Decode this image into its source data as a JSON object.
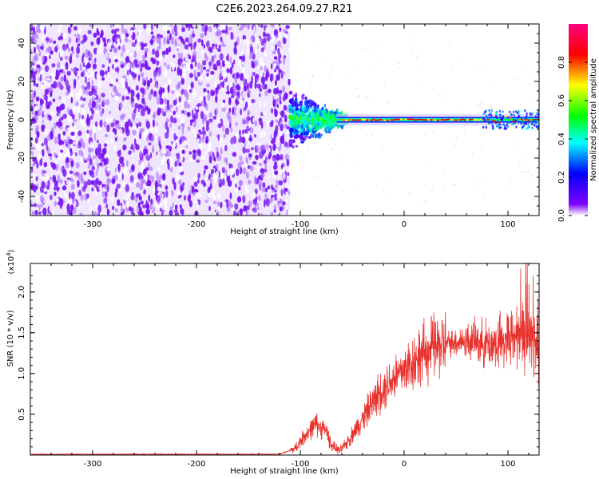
{
  "title": "C2E6.2023.264.09.27.R21",
  "chart_data": [
    {
      "type": "heatmap",
      "xlabel": "Height of straight line (km)",
      "ylabel": "Frequency (Hz)",
      "xlim": [
        -360,
        130
      ],
      "ylim": [
        -50,
        50
      ],
      "xticks": [
        -300,
        -200,
        -100,
        0,
        100
      ],
      "yticks": [
        -40,
        -20,
        0,
        20,
        40
      ],
      "noise_region": {
        "x": [
          -360,
          -110
        ],
        "y": [
          -50,
          50
        ]
      },
      "transition_region": {
        "x": [
          -110,
          -55
        ],
        "y": [
          -15,
          15
        ]
      },
      "signal_trace": {
        "x": [
          -110,
          130
        ],
        "frequency": 0
      },
      "colorbar": {
        "label": "Normalized spectral amplitude",
        "range": [
          0,
          1
        ],
        "ticks": [
          0.0,
          0.2,
          0.4,
          0.6,
          0.8
        ],
        "colormap": [
          "#ffffff",
          "#7f00ff",
          "#0000ff",
          "#00ffff",
          "#00ff00",
          "#ffff00",
          "#ff0000",
          "#ff0080"
        ]
      }
    },
    {
      "type": "line",
      "xlabel": "Height of straight line (km)",
      "ylabel": "SNR (10 * v/v)",
      "y_multiplier": "(x10",
      "y_exponent": "4",
      "y_exponent_close": ")",
      "xlim": [
        -360,
        130
      ],
      "ylim": [
        0,
        2.35
      ],
      "xticks": [
        -300,
        -200,
        -100,
        0,
        100
      ],
      "yticks": [
        0.5,
        1.0,
        1.5,
        2.0
      ],
      "ytick_labels": [
        "0.5",
        "1.0",
        "1.5",
        "2.0"
      ],
      "color": "#e8322d",
      "series": [
        {
          "x": [
            -360,
            -300,
            -200,
            -120,
            -105,
            -95,
            -85,
            -75,
            -70,
            -62,
            -55,
            -45,
            -35,
            -25,
            -15,
            -5,
            5,
            15,
            25,
            35,
            45,
            55,
            65,
            75,
            85,
            95,
            105,
            115,
            125,
            130
          ],
          "values": [
            0.01,
            0.01,
            0.01,
            0.01,
            0.08,
            0.25,
            0.38,
            0.3,
            0.12,
            0.05,
            0.15,
            0.35,
            0.55,
            0.75,
            0.9,
            1.0,
            1.1,
            1.22,
            1.3,
            1.35,
            1.38,
            1.4,
            1.4,
            1.38,
            1.36,
            1.38,
            1.45,
            1.5,
            1.4,
            1.3
          ]
        }
      ]
    }
  ]
}
